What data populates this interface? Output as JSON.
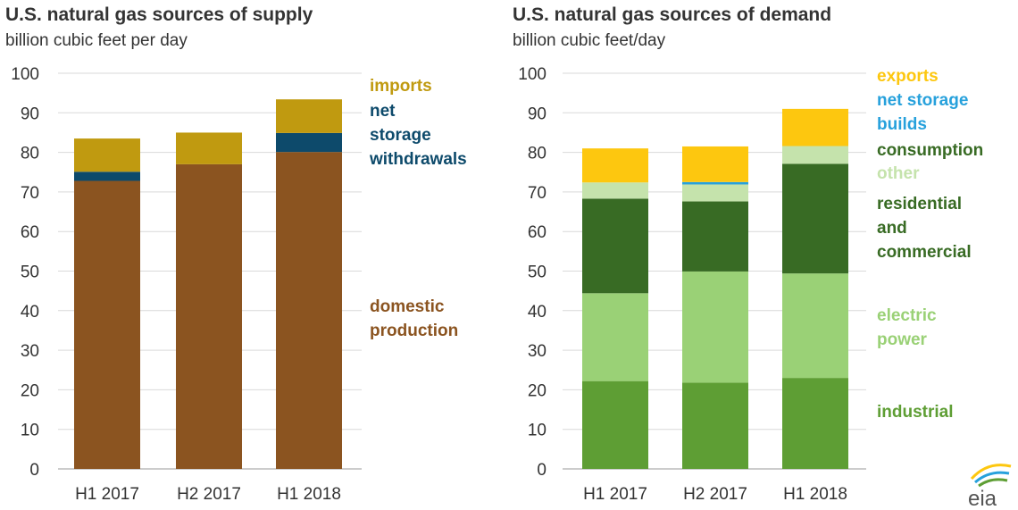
{
  "chart_data": [
    {
      "type": "bar",
      "stacked": true,
      "title": "U.S. natural gas sources of supply",
      "subtitle": "billion cubic feet per day",
      "categories": [
        "H1 2017",
        "H2 2017",
        "H1 2018"
      ],
      "ylim": [
        0,
        100
      ],
      "yticks": [
        0,
        10,
        20,
        30,
        40,
        50,
        60,
        70,
        80,
        90,
        100
      ],
      "grid": true,
      "series": [
        {
          "key": "domestic",
          "values": [
            72.8,
            77.0,
            80.1
          ],
          "color": "#8b5420"
        },
        {
          "key": "withdrawals",
          "values": [
            2.3,
            0,
            4.8
          ],
          "color": "#0d4a6b"
        },
        {
          "key": "imports",
          "values": [
            8.4,
            8.0,
            8.5
          ],
          "color": "#c09a10"
        }
      ],
      "legend_labels": [
        {
          "series": "imports",
          "lines": [
            "imports"
          ],
          "color": "#c09a10"
        },
        {
          "series": "withdrawals",
          "lines": [
            "net",
            "storage",
            "withdrawals"
          ],
          "color": "#0d4a6b"
        },
        {
          "series": "domestic",
          "lines": [
            "domestic",
            "production"
          ],
          "color": "#8b5420"
        }
      ]
    },
    {
      "type": "bar",
      "stacked": true,
      "title": "U.S. natural gas sources of demand",
      "subtitle": "billion cubic  feet/day",
      "categories": [
        "H1 2017",
        "H2 2017",
        "H1 2018"
      ],
      "ylim": [
        0,
        100
      ],
      "yticks": [
        0,
        10,
        20,
        30,
        40,
        50,
        60,
        70,
        80,
        90,
        100
      ],
      "grid": true,
      "series": [
        {
          "key": "industrial",
          "values": [
            22.2,
            21.8,
            23.0
          ],
          "color": "#5e9e34"
        },
        {
          "key": "electric",
          "values": [
            22.2,
            28.1,
            26.4
          ],
          "color": "#9ad176"
        },
        {
          "key": "rescomm",
          "values": [
            23.9,
            17.7,
            27.7
          ],
          "color": "#386b24"
        },
        {
          "key": "other",
          "values": [
            4.1,
            4.3,
            4.5
          ],
          "color": "#c5e3ac"
        },
        {
          "key": "storage",
          "values": [
            0,
            0.6,
            0
          ],
          "color": "#27a1dc"
        },
        {
          "key": "exports",
          "values": [
            8.6,
            9.0,
            9.4
          ],
          "color": "#fdc70f"
        }
      ],
      "legend_labels": [
        {
          "series": "exports",
          "lines": [
            "exports"
          ],
          "color": "#fdc70f"
        },
        {
          "series": "storage",
          "lines": [
            "net storage",
            "builds"
          ],
          "color": "#27a1dc"
        },
        {
          "series": "consumption",
          "lines": [
            "consumption"
          ],
          "color": "#386b24"
        },
        {
          "series": "other",
          "lines": [
            "other"
          ],
          "color": "#c5e3ac"
        },
        {
          "series": "rescomm",
          "lines": [
            "residential",
            "and",
            "commercial"
          ],
          "color": "#386b24"
        },
        {
          "series": "electric",
          "lines": [
            "electric",
            "power"
          ],
          "color": "#9ad176"
        },
        {
          "series": "industrial",
          "lines": [
            "industrial"
          ],
          "color": "#5e9e34"
        }
      ]
    }
  ],
  "logo": {
    "text": "eia",
    "colors": [
      "#fdc70f",
      "#27a1dc",
      "#5e9e34"
    ]
  }
}
